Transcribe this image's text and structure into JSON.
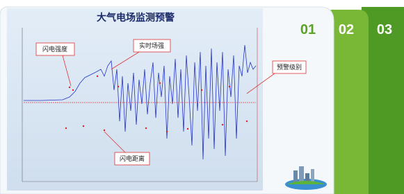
{
  "title": "大气电场监测预警",
  "tabs": [
    "01",
    "02",
    "03"
  ],
  "callouts": [
    "闪电强度",
    "实时场强",
    "预警级别",
    "闪电距离"
  ]
}
